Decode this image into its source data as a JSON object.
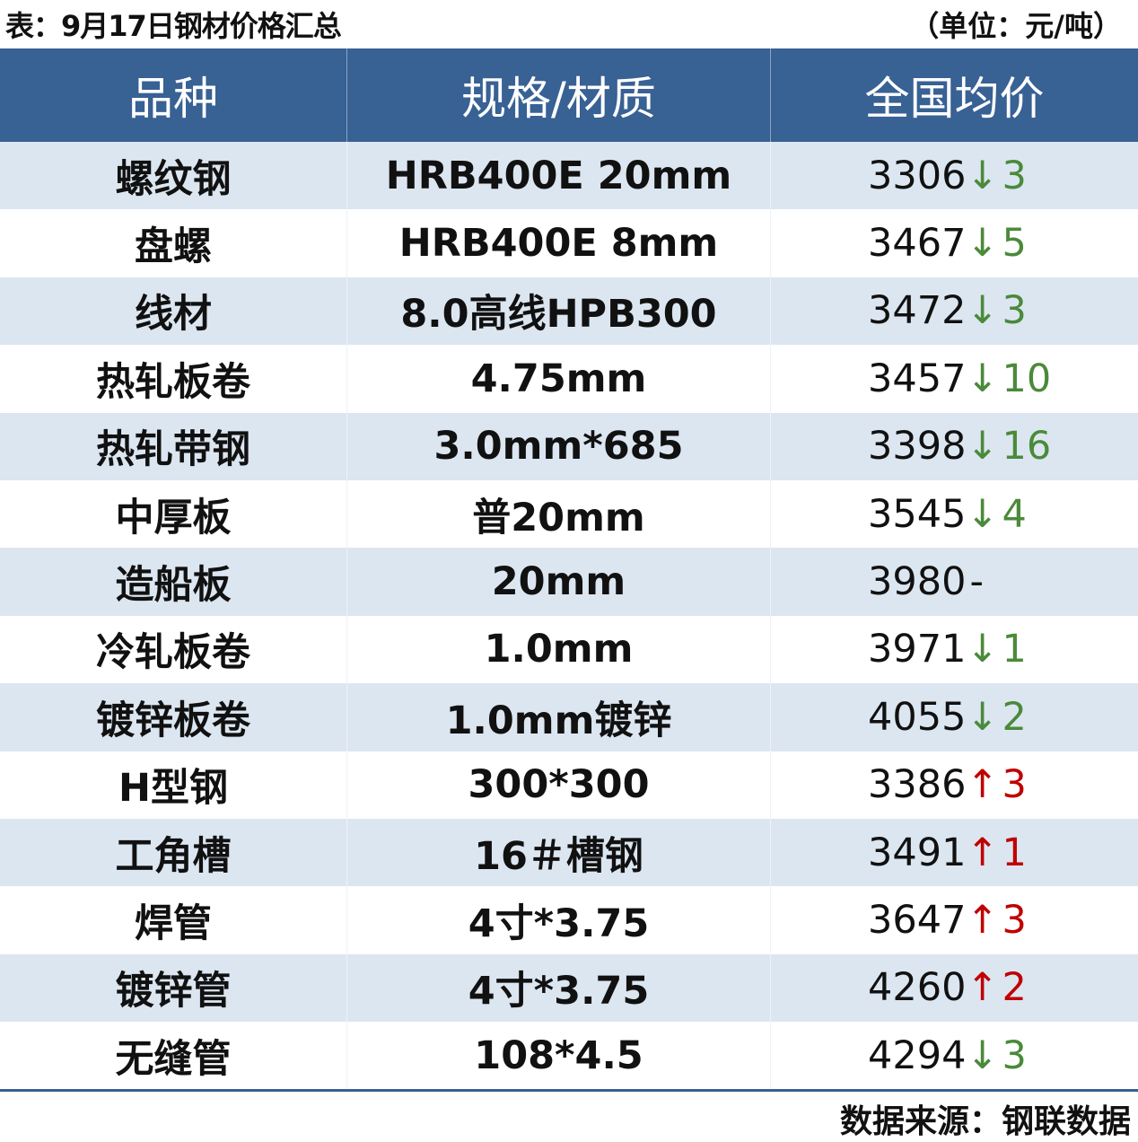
{
  "title": "表：9月17日钢材价格汇总",
  "unit": "（单位：元/吨）",
  "headers": [
    "品种",
    "规格/材质",
    "全国均价"
  ],
  "colors": {
    "header_bg": "#386194",
    "stripe": "#dce6f1",
    "down": "#4a8a3a",
    "up": "#c00000"
  },
  "rows": [
    {
      "name": "螺纹钢",
      "spec": "HRB400E 20mm",
      "price": "3306",
      "arrow": "↓",
      "change": "3",
      "dir": "down"
    },
    {
      "name": "盘螺",
      "spec": "HRB400E 8mm",
      "price": "3467",
      "arrow": "↓",
      "change": "5",
      "dir": "down"
    },
    {
      "name": "线材",
      "spec": "8.0高线HPB300",
      "price": "3472",
      "arrow": "↓",
      "change": "3",
      "dir": "down"
    },
    {
      "name": "热轧板卷",
      "spec": "4.75mm",
      "price": "3457",
      "arrow": "↓",
      "change": "10",
      "dir": "down"
    },
    {
      "name": "热轧带钢",
      "spec": "3.0mm*685",
      "price": "3398",
      "arrow": "↓",
      "change": "16",
      "dir": "down"
    },
    {
      "name": "中厚板",
      "spec": "普20mm",
      "price": "3545",
      "arrow": "↓",
      "change": "4",
      "dir": "down"
    },
    {
      "name": "造船板",
      "spec": "20mm",
      "price": "3980",
      "arrow": "",
      "change": "-",
      "dir": "flat"
    },
    {
      "name": "冷轧板卷",
      "spec": "1.0mm",
      "price": "3971",
      "arrow": "↓",
      "change": "1",
      "dir": "down"
    },
    {
      "name": "镀锌板卷",
      "spec": "1.0mm镀锌",
      "price": "4055",
      "arrow": "↓",
      "change": "2",
      "dir": "down"
    },
    {
      "name": "H型钢",
      "spec": "300*300",
      "price": "3386",
      "arrow": "↑",
      "change": "3",
      "dir": "up"
    },
    {
      "name": "工角槽",
      "spec": "16＃槽钢",
      "price": "3491",
      "arrow": "↑",
      "change": "1",
      "dir": "up"
    },
    {
      "name": "焊管",
      "spec": "4寸*3.75",
      "price": "3647",
      "arrow": "↑",
      "change": "3",
      "dir": "up"
    },
    {
      "name": "镀锌管",
      "spec": "4寸*3.75",
      "price": "4260",
      "arrow": "↑",
      "change": "2",
      "dir": "up"
    },
    {
      "name": "无缝管",
      "spec": "108*4.5",
      "price": "4294",
      "arrow": "↓",
      "change": "3",
      "dir": "down"
    }
  ],
  "source": "数据来源：钢联数据"
}
